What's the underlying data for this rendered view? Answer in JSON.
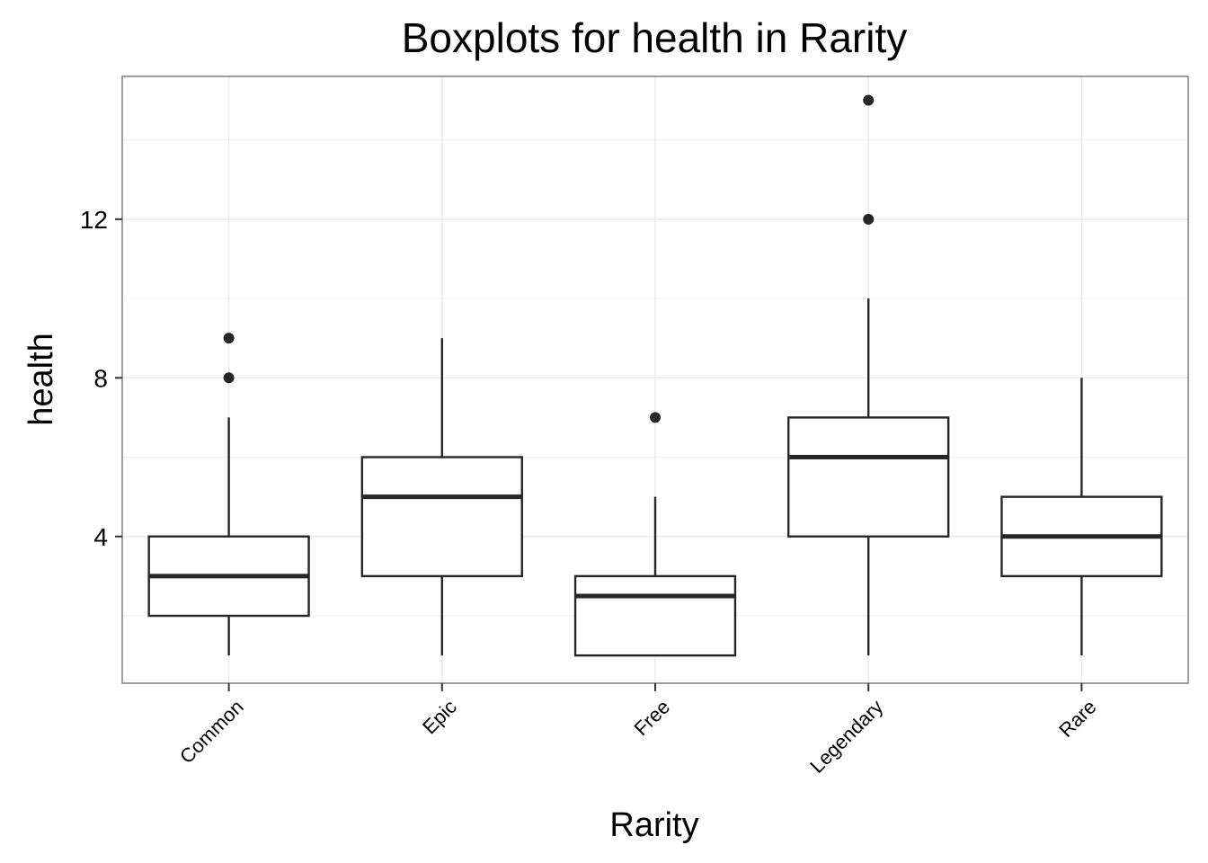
{
  "chart_data": {
    "type": "boxplot",
    "title": "Boxplots for health in Rarity",
    "xlabel": "Rarity",
    "ylabel": "health",
    "ylim": [
      0.3,
      15.6
    ],
    "yticks": [
      4,
      8,
      12
    ],
    "grid": true,
    "categories": [
      "Common",
      "Epic",
      "Free",
      "Legendary",
      "Rare"
    ],
    "boxes": [
      {
        "category": "Common",
        "whisker_low": 1,
        "q1": 2,
        "median": 3,
        "q3": 4,
        "whisker_high": 7,
        "outliers": [
          8,
          9
        ]
      },
      {
        "category": "Epic",
        "whisker_low": 1,
        "q1": 3,
        "median": 5,
        "q3": 6,
        "whisker_high": 9,
        "outliers": []
      },
      {
        "category": "Free",
        "whisker_low": 1,
        "q1": 1,
        "median": 2.5,
        "q3": 3,
        "whisker_high": 5,
        "outliers": [
          7
        ]
      },
      {
        "category": "Legendary",
        "whisker_low": 1,
        "q1": 4,
        "median": 6,
        "q3": 7,
        "whisker_high": 10,
        "outliers": [
          12,
          15
        ]
      },
      {
        "category": "Rare",
        "whisker_low": 1,
        "q1": 3,
        "median": 4,
        "q3": 5,
        "whisker_high": 8,
        "outliers": []
      }
    ],
    "colors": {
      "box_stroke": "#262626",
      "outlier": "#262626",
      "panel_border": "#7f7f7f",
      "grid": "#ebebeb"
    }
  }
}
